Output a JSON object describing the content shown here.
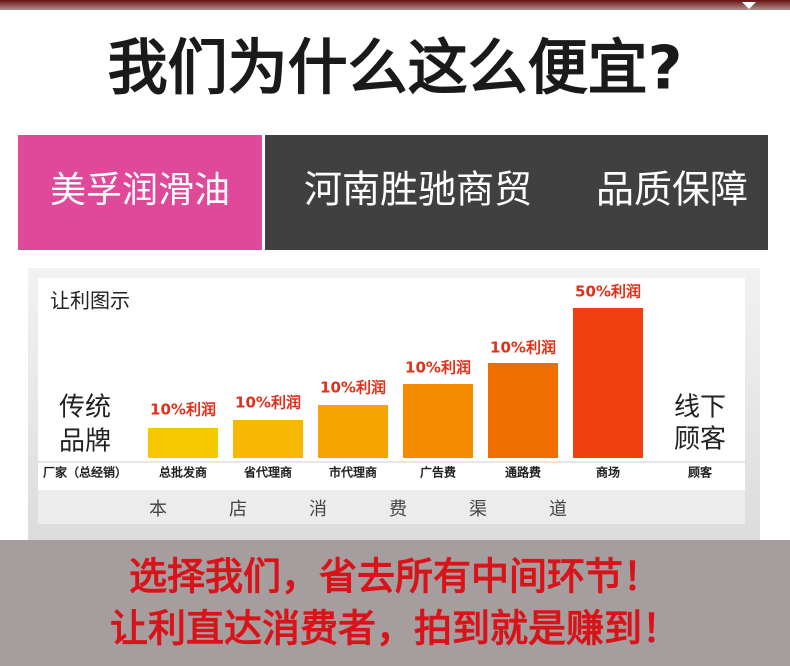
{
  "header": {
    "title": "我们为什么这么便宜?"
  },
  "banner": {
    "brand": "美孚润滑油",
    "company": "河南胜驰商贸",
    "promise": "品质保障"
  },
  "diagram": {
    "title": "让利图示",
    "left_label": [
      "传统",
      "品牌"
    ],
    "right_label": [
      "线下",
      "顾客"
    ],
    "source": "厂家（总经销）",
    "stages": [
      {
        "name": "总批发商",
        "label": "10%利润"
      },
      {
        "name": "省代理商",
        "label": "10%利润"
      },
      {
        "name": "市代理商",
        "label": "10%利润"
      },
      {
        "name": "广告费",
        "label": "10%利润"
      },
      {
        "name": "通路费",
        "label": "10%利润"
      },
      {
        "name": "商场",
        "label": "50%利润"
      }
    ],
    "target": "顾客",
    "channel": "本店消费渠道"
  },
  "footer": {
    "lines": [
      "选择我们，省去所有中间环节！",
      "让利直达消费者，拍到就是赚到！"
    ]
  }
}
